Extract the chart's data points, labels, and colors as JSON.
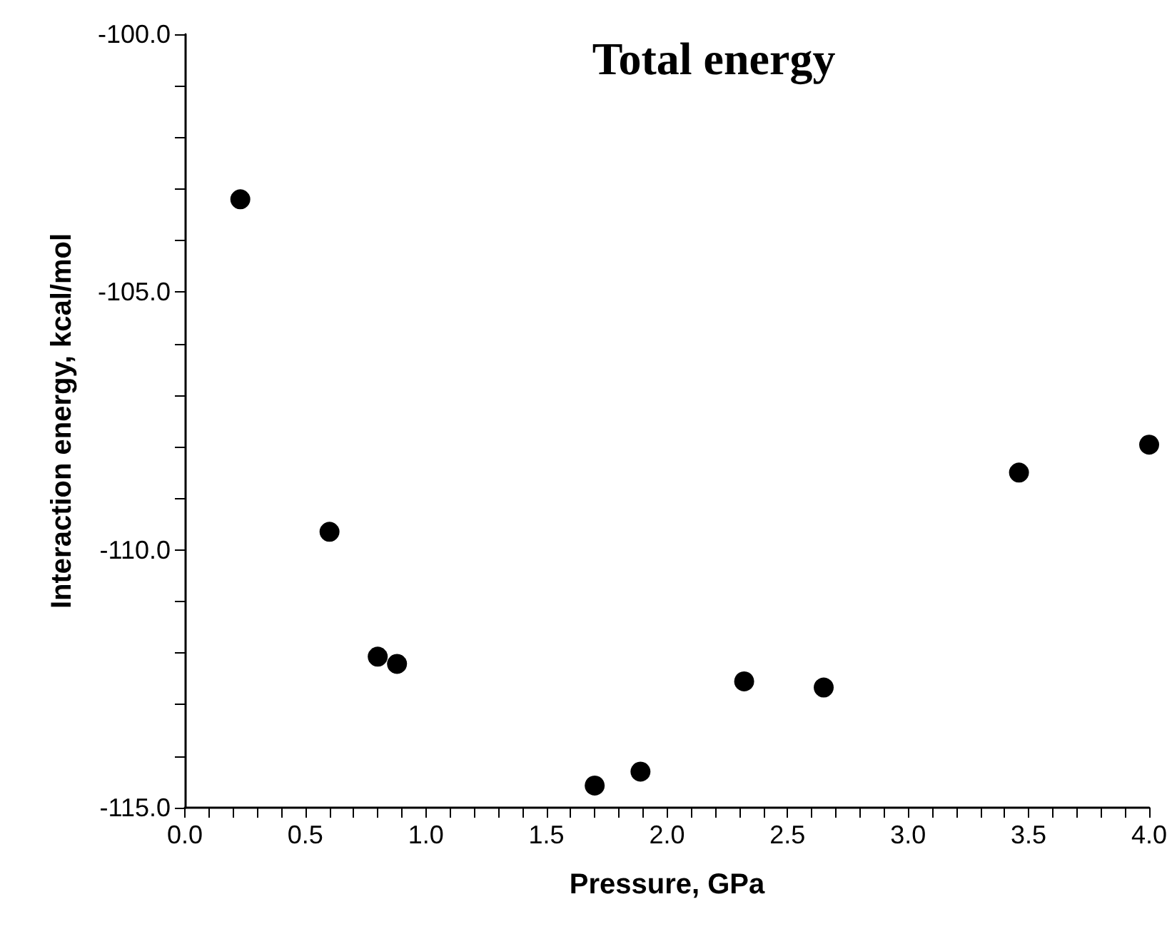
{
  "chart_data": {
    "type": "scatter",
    "title": "Total energy",
    "xlabel": "Pressure, GPa",
    "ylabel": "Interaction energy, kcal/mol",
    "x": [
      0.23,
      0.6,
      0.8,
      0.88,
      1.7,
      1.89,
      2.32,
      2.65,
      3.46,
      4.0
    ],
    "values": [
      -103.2,
      -109.65,
      -112.07,
      -112.21,
      -114.57,
      -114.3,
      -112.55,
      -112.67,
      -108.5,
      -107.96
    ],
    "color": "#000000",
    "marker": "circle",
    "grid": false,
    "xlim": [
      0,
      4
    ],
    "xticks": [
      {
        "value": 0,
        "label": "0.0"
      },
      {
        "value": 0.1,
        "label": null
      },
      {
        "value": 0.2,
        "label": null
      },
      {
        "value": 0.3,
        "label": null
      },
      {
        "value": 0.4,
        "label": null
      },
      {
        "value": 0.5,
        "label": "0.5"
      },
      {
        "value": 0.6,
        "label": null
      },
      {
        "value": 0.7,
        "label": null
      },
      {
        "value": 0.8,
        "label": null
      },
      {
        "value": 0.9,
        "label": null
      },
      {
        "value": 1,
        "label": "1.0"
      },
      {
        "value": 1.1,
        "label": null
      },
      {
        "value": 1.2,
        "label": null
      },
      {
        "value": 1.3,
        "label": null
      },
      {
        "value": 1.4,
        "label": null
      },
      {
        "value": 1.5,
        "label": "1.5"
      },
      {
        "value": 1.6,
        "label": null
      },
      {
        "value": 1.7,
        "label": null
      },
      {
        "value": 1.8,
        "label": null
      },
      {
        "value": 1.9,
        "label": null
      },
      {
        "value": 2,
        "label": "2.0"
      },
      {
        "value": 2.1,
        "label": null
      },
      {
        "value": 2.2,
        "label": null
      },
      {
        "value": 2.3,
        "label": null
      },
      {
        "value": 2.4,
        "label": null
      },
      {
        "value": 2.5,
        "label": "2.5"
      },
      {
        "value": 2.6,
        "label": null
      },
      {
        "value": 2.7,
        "label": null
      },
      {
        "value": 2.8,
        "label": null
      },
      {
        "value": 2.9,
        "label": null
      },
      {
        "value": 3,
        "label": "3.0"
      },
      {
        "value": 3.1,
        "label": null
      },
      {
        "value": 3.2,
        "label": null
      },
      {
        "value": 3.3,
        "label": null
      },
      {
        "value": 3.4,
        "label": null
      },
      {
        "value": 3.5,
        "label": "3.5"
      },
      {
        "value": 3.6,
        "label": null
      },
      {
        "value": 3.7,
        "label": null
      },
      {
        "value": 3.8,
        "label": null
      },
      {
        "value": 3.9,
        "label": null
      },
      {
        "value": 4,
        "label": "4.0"
      }
    ],
    "ylim": [
      -115,
      -100
    ],
    "yticks": [
      {
        "value": -115,
        "label": "-115.0"
      },
      {
        "value": -114,
        "label": null
      },
      {
        "value": -113,
        "label": null
      },
      {
        "value": -112,
        "label": null
      },
      {
        "value": -111,
        "label": null
      },
      {
        "value": -110,
        "label": "-110.0"
      },
      {
        "value": -109,
        "label": null
      },
      {
        "value": -108,
        "label": null
      },
      {
        "value": -107,
        "label": null
      },
      {
        "value": -106,
        "label": null
      },
      {
        "value": -105,
        "label": "-105.0"
      },
      {
        "value": -104,
        "label": null
      },
      {
        "value": -103,
        "label": null
      },
      {
        "value": -102,
        "label": null
      },
      {
        "value": -101,
        "label": null
      },
      {
        "value": -100,
        "label": "-100.0"
      }
    ]
  }
}
